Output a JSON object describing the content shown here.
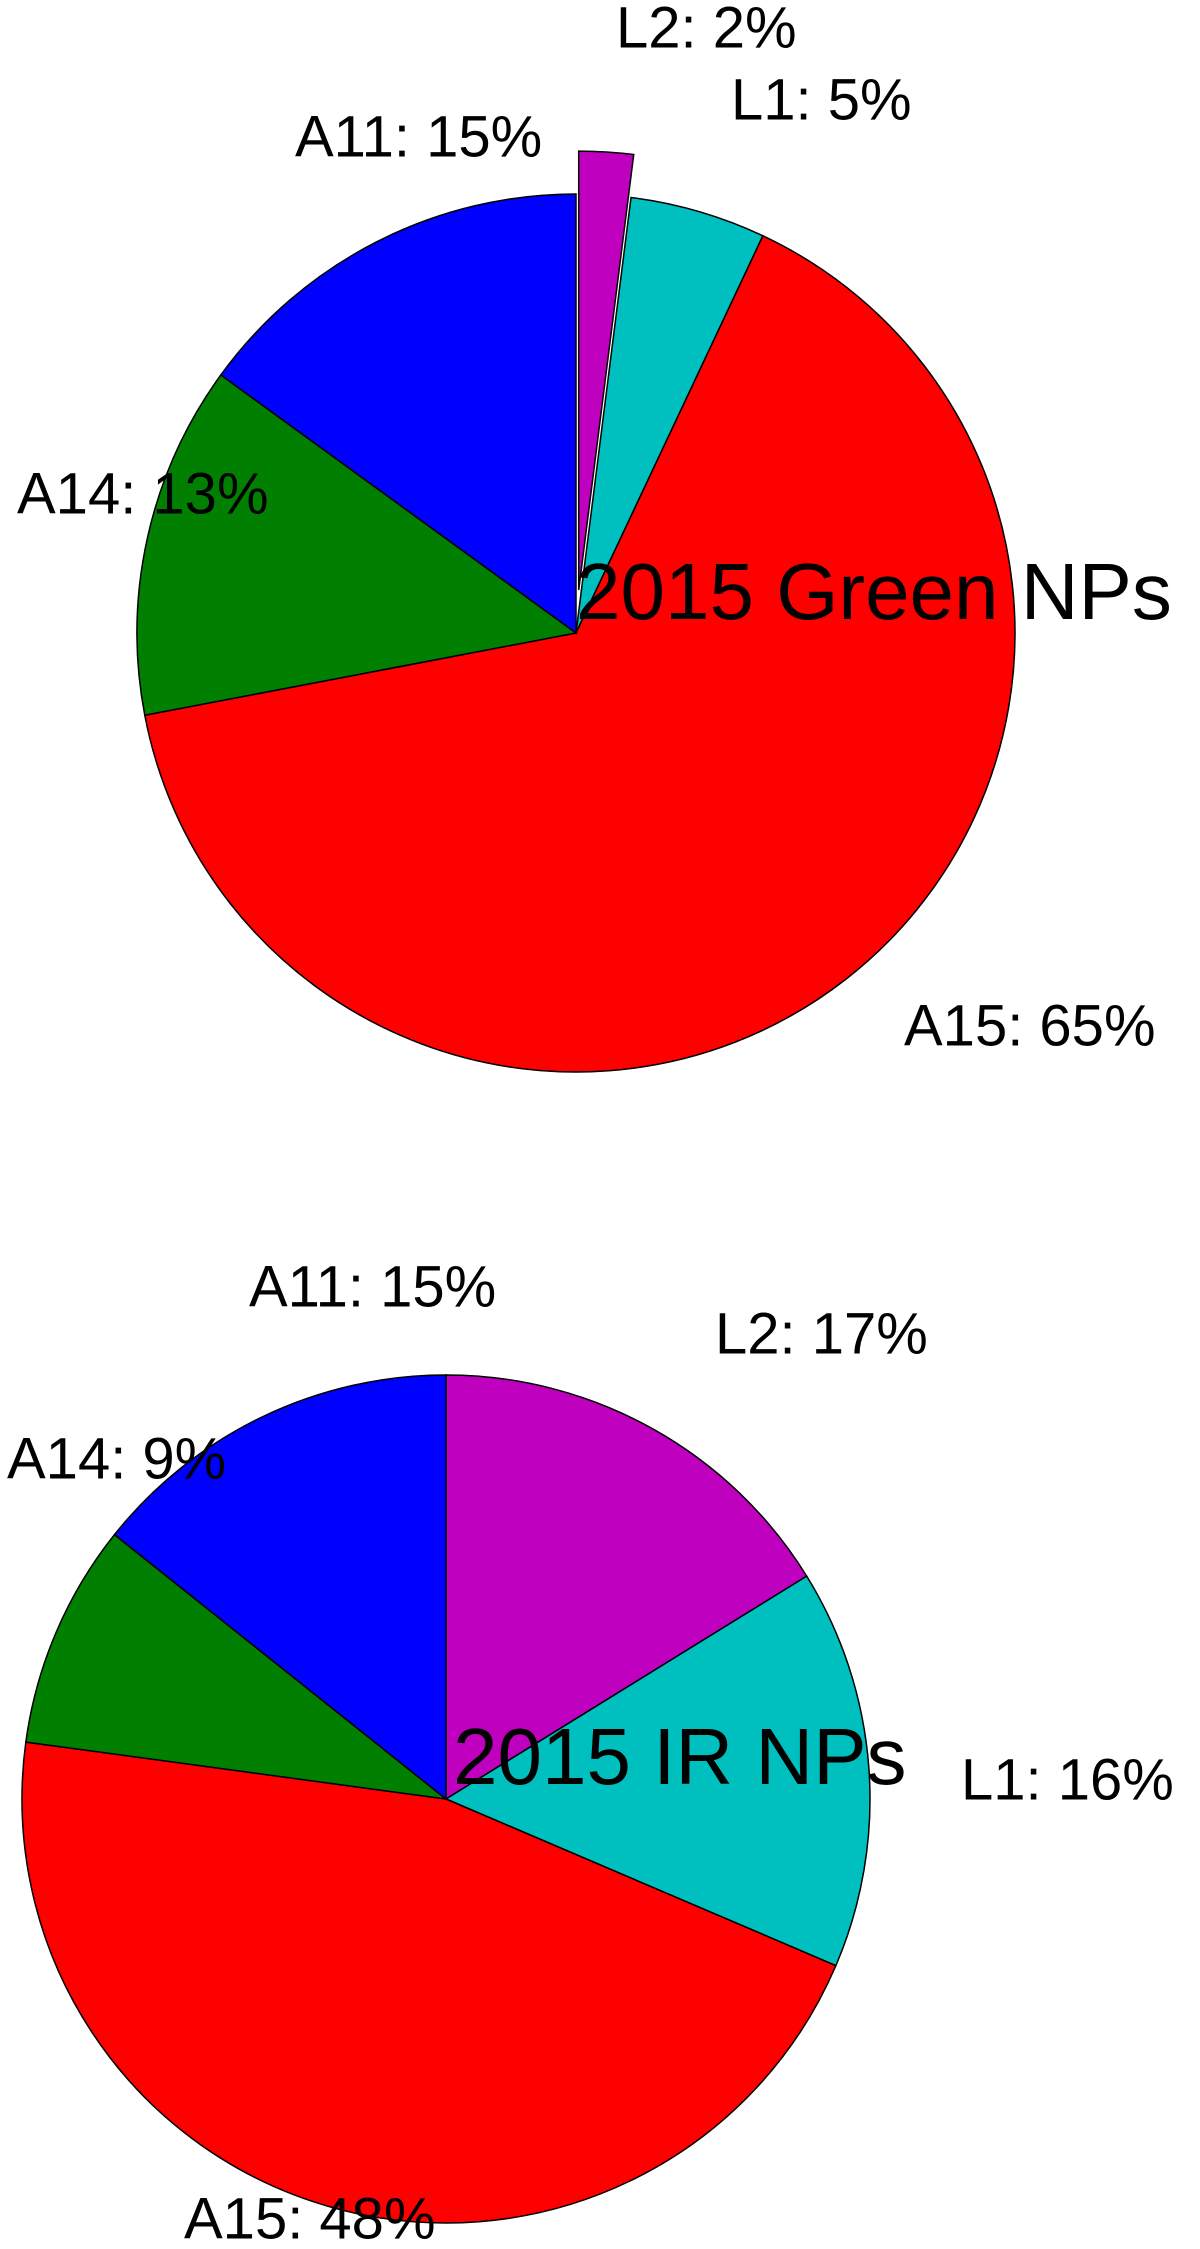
{
  "chart_data": [
    {
      "type": "pie",
      "title": "2015 Green NPs",
      "values": [
        2,
        5,
        65,
        13,
        15
      ],
      "value_labels": [
        "L2: 2%",
        "L1: 5%",
        "A15: 65%",
        "A14: 13%",
        "A11: 15%"
      ],
      "colors": [
        "#bf00bf",
        "#00bfbf",
        "#ff0000",
        "#007f00",
        "#0000ff"
      ]
    },
    {
      "type": "pie",
      "title": "2015 IR NPs",
      "values": [
        17,
        16,
        48,
        9,
        15
      ],
      "value_labels": [
        "L2: 17%",
        "L1: 16%",
        "A15: 48%",
        "A14: 9%",
        "A11: 15%"
      ],
      "colors": [
        "#bf00bf",
        "#00bfbf",
        "#ff0000",
        "#007f00",
        "#0000ff"
      ]
    }
  ]
}
